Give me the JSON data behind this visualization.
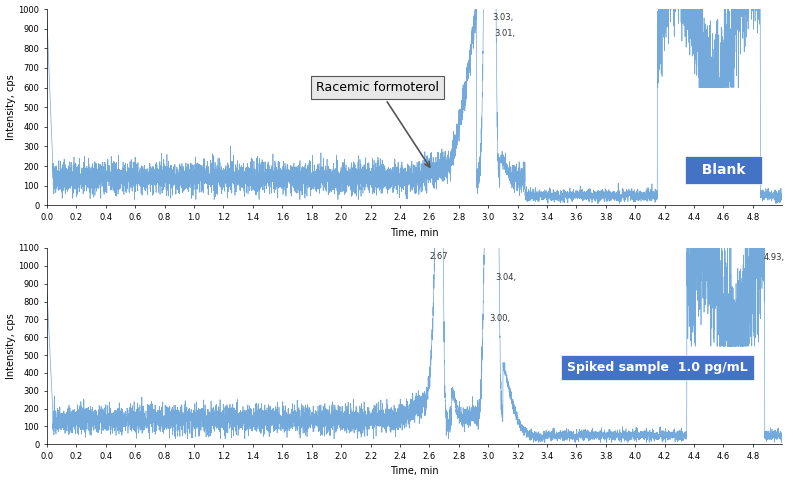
{
  "top_panel": {
    "ylim": [
      0,
      1000
    ],
    "yticks": [
      0,
      100,
      200,
      300,
      400,
      500,
      600,
      700,
      800,
      900,
      1000
    ],
    "xlim": [
      0.0,
      5.0
    ],
    "xticks": [
      0.0,
      0.2,
      0.4,
      0.6,
      0.8,
      1.0,
      1.2,
      1.4,
      1.6,
      1.8,
      2.0,
      2.2,
      2.4,
      2.6,
      2.8,
      3.0,
      3.2,
      3.4,
      3.6,
      3.8,
      4.0,
      4.2,
      4.4,
      4.6,
      4.8
    ],
    "ylabel": "Intensity, cps",
    "xlabel": "Time, min",
    "label": "Blank",
    "label_color": "#4472C4",
    "annotation_box": "Racemic formoterol",
    "line_color": "#5B9BD5",
    "noise_baseline": 140,
    "noise_amplitude": 40,
    "seed": 101
  },
  "bottom_panel": {
    "ylim": [
      0,
      1100
    ],
    "yticks": [
      0,
      100,
      200,
      300,
      400,
      500,
      600,
      700,
      800,
      900,
      1000,
      1100
    ],
    "xlim": [
      0.0,
      5.0
    ],
    "xticks": [
      0.0,
      0.2,
      0.4,
      0.6,
      0.8,
      1.0,
      1.2,
      1.4,
      1.6,
      1.8,
      2.0,
      2.2,
      2.4,
      2.6,
      2.8,
      3.0,
      3.2,
      3.4,
      3.6,
      3.8,
      4.0,
      4.2,
      4.4,
      4.6,
      4.8
    ],
    "ylabel": "Intensity, cps",
    "xlabel": "Time, min",
    "label": "Spiked sample  1.0 pg/mL",
    "label_color": "#4472C4",
    "line_color": "#5B9BD5",
    "noise_baseline": 140,
    "noise_amplitude": 40,
    "seed": 202
  },
  "fig_width": 7.93,
  "fig_height": 4.82,
  "dpi": 100,
  "bg_color": "#FFFFFF"
}
